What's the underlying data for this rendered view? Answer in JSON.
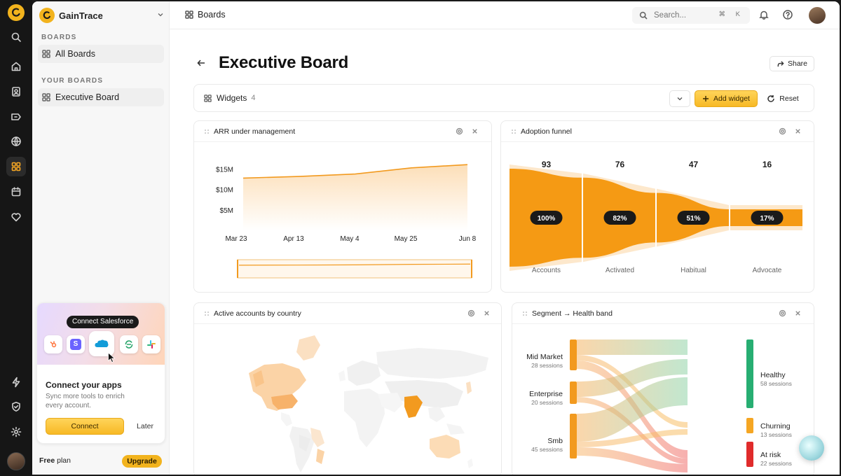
{
  "rail": {
    "icons": [
      "logo-icon",
      "search-icon",
      "home-icon",
      "contacts-icon",
      "ticket-icon",
      "globe-icon",
      "boards-icon",
      "calendar-icon",
      "heart-icon",
      "bolt-icon",
      "shield-icon",
      "gear-icon"
    ],
    "active": "boards-icon",
    "accent": "#f5a623"
  },
  "sidebar": {
    "brand": "GainTrace",
    "boards_label": "BOARDS",
    "all_boards": "All Boards",
    "your_boards_label": "YOUR BOARDS",
    "executive_board": "Executive Board",
    "promo": {
      "tooltip": "Connect Salesforce",
      "apps": [
        "hubspot-icon",
        "stripe-icon",
        "salesforce-icon",
        "sync-icon",
        "slack-icon"
      ],
      "title": "Connect your apps",
      "subtitle": "Sync more tools to enrich every account.",
      "connect": "Connect",
      "later": "Later"
    },
    "plan_bold": "Free",
    "plan_rest": " plan",
    "upgrade": "Upgrade"
  },
  "topbar": {
    "breadcrumb": "Boards",
    "search_placeholder": "Search...",
    "shortcut": "⌘ K"
  },
  "page": {
    "title": "Executive Board",
    "share": "Share",
    "widgets_label": "Widgets",
    "widgets_count": "4",
    "add_widget": "Add widget",
    "reset": "Reset"
  },
  "widgets": {
    "arr": {
      "title": "ARR under management",
      "chart_data": {
        "type": "area",
        "x": [
          "Mar 23",
          "Apr 13",
          "May 4",
          "May 25",
          "Jun 8"
        ],
        "y_ticks": [
          "$5M",
          "$10M",
          "$15M"
        ],
        "series": [
          {
            "values": [
              12.8,
              13.2,
              13.8,
              15.3,
              16.1
            ]
          }
        ],
        "ylim": [
          0,
          17.5
        ]
      }
    },
    "funnel": {
      "title": "Adoption funnel",
      "chart_data": {
        "type": "bar",
        "categories": [
          "Accounts",
          "Activated",
          "Habitual",
          "Advocate"
        ],
        "values": [
          93,
          76,
          47,
          16
        ],
        "percent_labels": [
          "100%",
          "82%",
          "51%",
          "17%"
        ]
      }
    },
    "map": {
      "title": "Active accounts by country"
    },
    "sankey": {
      "title": "Segment → Health band",
      "sources": [
        {
          "name": "Mid Market",
          "sessions": "28 sessions"
        },
        {
          "name": "Enterprise",
          "sessions": "20 sessions"
        },
        {
          "name": "Smb",
          "sessions": "45 sessions"
        }
      ],
      "targets": [
        {
          "name": "Healthy",
          "sessions": "58 sessions",
          "color": "#27ae72"
        },
        {
          "name": "Churning",
          "sessions": "13 sessions",
          "color": "#f5a623"
        },
        {
          "name": "At risk",
          "sessions": "22 sessions",
          "color": "#e02b2b"
        }
      ]
    }
  }
}
